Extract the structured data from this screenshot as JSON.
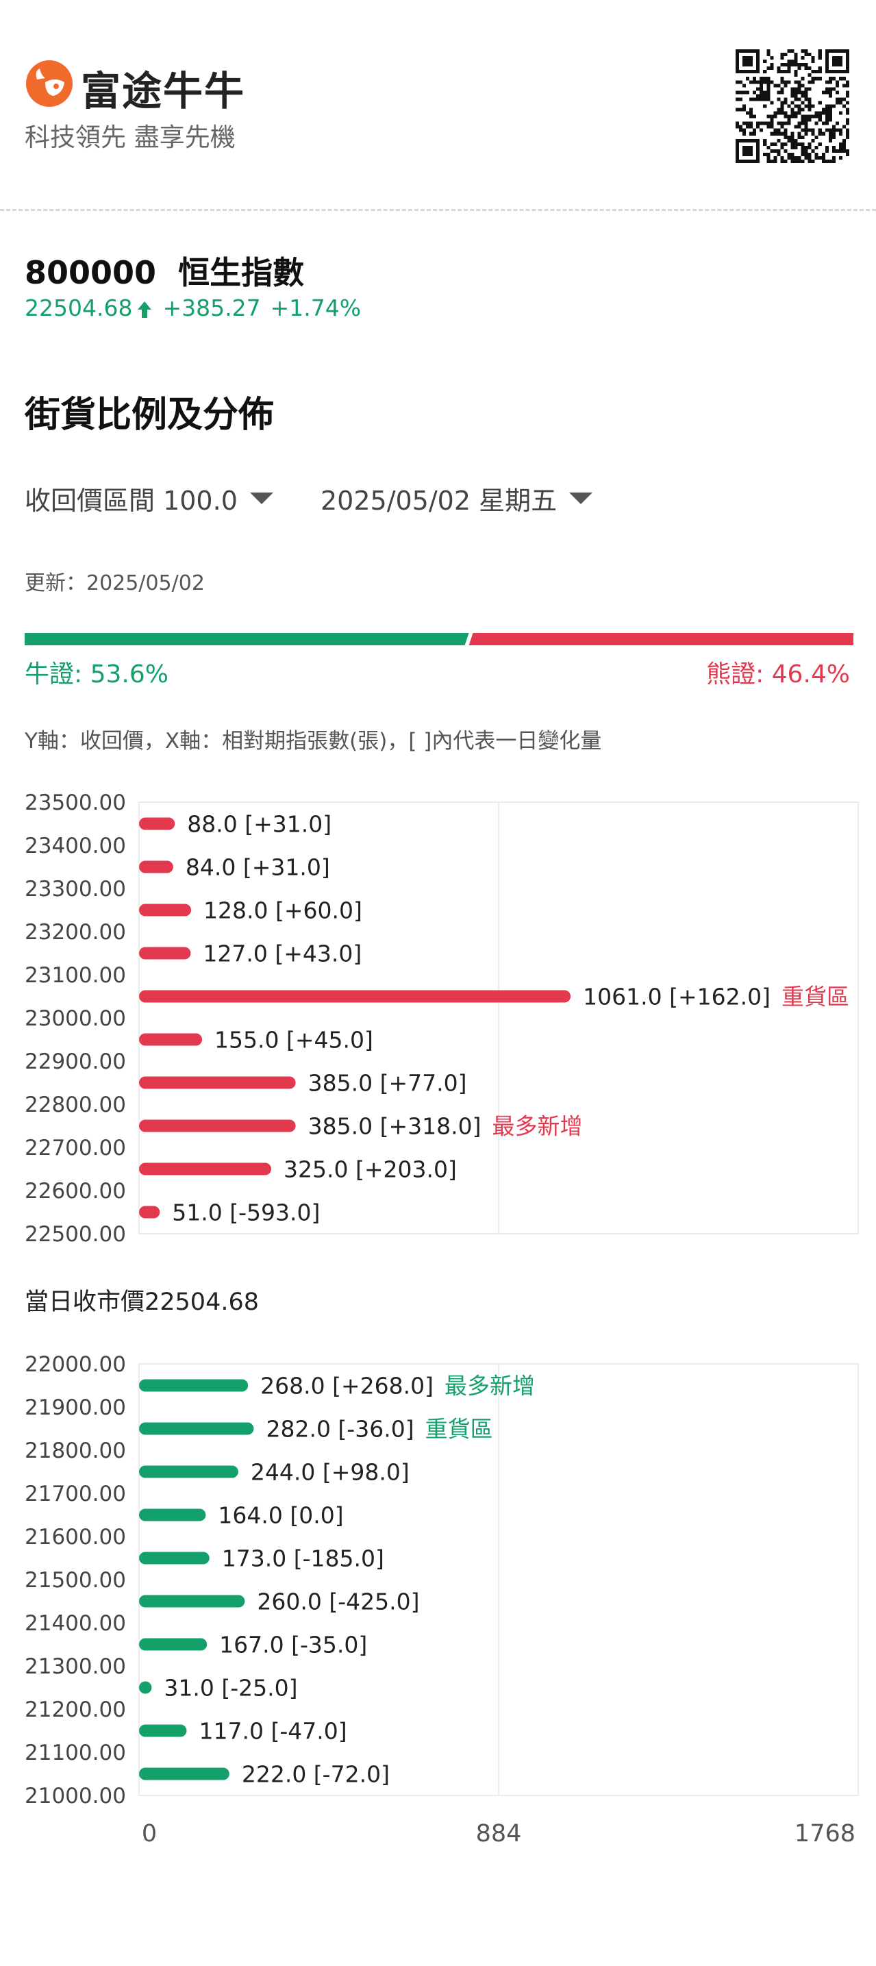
{
  "header": {
    "brand": "富途牛牛",
    "tagline": "科技領先 盡享先機",
    "logo_icon": "futu-bull-logo-icon",
    "qr_icon": "qr-code-icon"
  },
  "stock": {
    "code": "800000",
    "name": "恒生指數",
    "price": "22504.68",
    "change": "+385.27",
    "change_pct": "+1.74%"
  },
  "section": {
    "title": "街貨比例及分佈"
  },
  "filters": {
    "range_label": "收回價區間 100.0",
    "date_label": "2025/05/02 星期五"
  },
  "update": {
    "label": "更新：2025/05/02"
  },
  "ratio": {
    "bull_label": "牛證: 53.6%",
    "bear_label": "熊證: 46.4%",
    "bull_pct": 53.6,
    "bear_pct": 46.4
  },
  "axis_note": "Y軸：收回價，X軸：相對期指張數(張)，[ ]內代表一日變化量",
  "close_price_label": "當日收市價22504.68",
  "colors": {
    "bull": "#14a06a",
    "bear": "#e3394f"
  },
  "chart_data": {
    "type": "bar",
    "orientation": "horizontal",
    "xlim": [
      0,
      1768
    ],
    "xticks": [
      "0",
      "884",
      "1768"
    ],
    "grid": true,
    "bear": {
      "yticks": [
        "23500.00",
        "23400.00",
        "23300.00",
        "23200.00",
        "23100.00",
        "23000.00",
        "22900.00",
        "22800.00",
        "22700.00",
        "22600.00",
        "22500.00"
      ],
      "bars": [
        {
          "value": 88.0,
          "label": "88.0 [+31.0]",
          "tag": ""
        },
        {
          "value": 84.0,
          "label": "84.0 [+31.0]",
          "tag": ""
        },
        {
          "value": 128.0,
          "label": "128.0 [+60.0]",
          "tag": ""
        },
        {
          "value": 127.0,
          "label": "127.0 [+43.0]",
          "tag": ""
        },
        {
          "value": 1061.0,
          "label": "1061.0 [+162.0]",
          "tag": "重貨區"
        },
        {
          "value": 155.0,
          "label": "155.0 [+45.0]",
          "tag": ""
        },
        {
          "value": 385.0,
          "label": "385.0 [+77.0]",
          "tag": ""
        },
        {
          "value": 385.0,
          "label": "385.0 [+318.0]",
          "tag": "最多新增"
        },
        {
          "value": 325.0,
          "label": "325.0 [+203.0]",
          "tag": ""
        },
        {
          "value": 51.0,
          "label": "51.0 [-593.0]",
          "tag": ""
        }
      ]
    },
    "bull": {
      "yticks": [
        "22000.00",
        "21900.00",
        "21800.00",
        "21700.00",
        "21600.00",
        "21500.00",
        "21400.00",
        "21300.00",
        "21200.00",
        "21100.00",
        "21000.00"
      ],
      "bars": [
        {
          "value": 268.0,
          "label": "268.0 [+268.0]",
          "tag": "最多新增"
        },
        {
          "value": 282.0,
          "label": "282.0 [-36.0]",
          "tag": "重貨區"
        },
        {
          "value": 244.0,
          "label": "244.0 [+98.0]",
          "tag": ""
        },
        {
          "value": 164.0,
          "label": "164.0 [0.0]",
          "tag": ""
        },
        {
          "value": 173.0,
          "label": "173.0 [-185.0]",
          "tag": ""
        },
        {
          "value": 260.0,
          "label": "260.0 [-425.0]",
          "tag": ""
        },
        {
          "value": 167.0,
          "label": "167.0 [-35.0]",
          "tag": ""
        },
        {
          "value": 31.0,
          "label": "31.0 [-25.0]",
          "tag": ""
        },
        {
          "value": 117.0,
          "label": "117.0 [-47.0]",
          "tag": ""
        },
        {
          "value": 222.0,
          "label": "222.0 [-72.0]",
          "tag": ""
        }
      ]
    }
  }
}
